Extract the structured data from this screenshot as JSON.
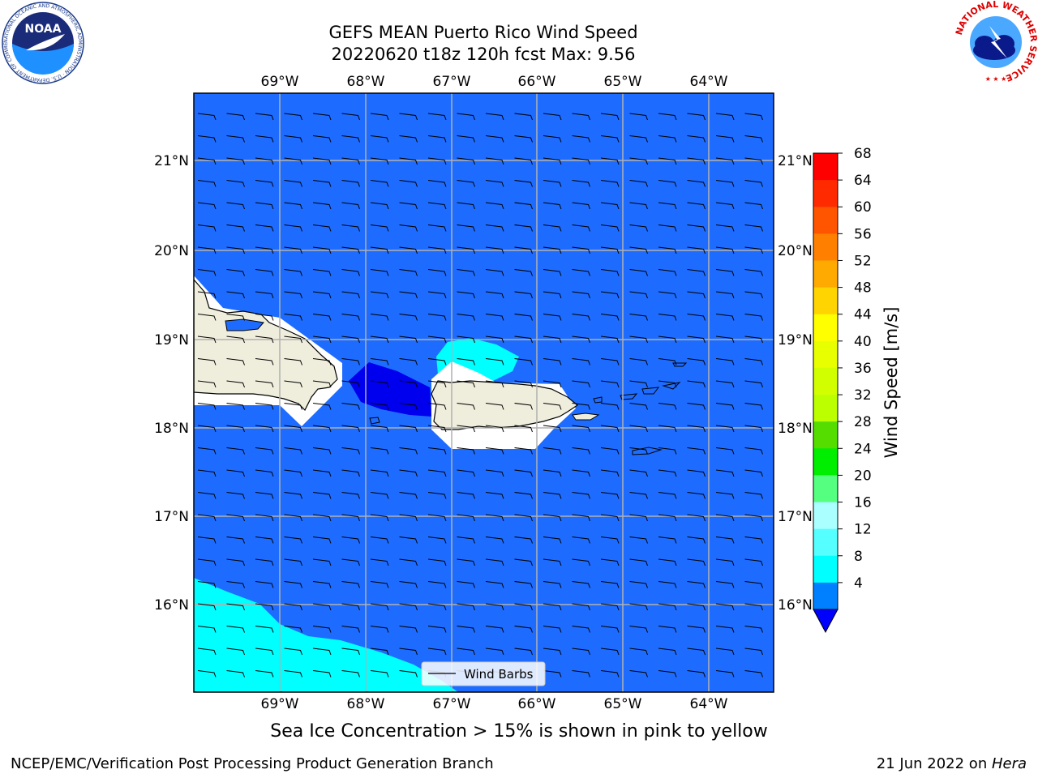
{
  "title_line1": "GEFS MEAN Puerto Rico Wind Speed",
  "title_line2": "20220620 t18z 120h fcst   Max: 9.56",
  "lon_labels": [
    "69°W",
    "68°W",
    "67°W",
    "66°W",
    "65°W",
    "64°W"
  ],
  "lat_labels": [
    "21°N",
    "20°N",
    "19°N",
    "18°N",
    "17°N",
    "16°N"
  ],
  "colorbar": {
    "label": "Wind Speed [m/s]",
    "ticks": [
      "68",
      "64",
      "60",
      "56",
      "52",
      "48",
      "44",
      "40",
      "36",
      "32",
      "28",
      "24",
      "20",
      "16",
      "12",
      "8",
      "4"
    ],
    "colors": [
      "#ff0000",
      "#ff2a00",
      "#ff5500",
      "#ff8000",
      "#ffaa00",
      "#ffd400",
      "#ffff00",
      "#e8ff00",
      "#d2ff00",
      "#bbff00",
      "#55dd00",
      "#00ee00",
      "#55ff80",
      "#aaffff",
      "#55ffff",
      "#00ffff",
      "#0080ff"
    ],
    "under_color": "#0000ff"
  },
  "legend_label": "Wind Barbs",
  "caption": "Sea Ice Concentration > 15% is shown in pink to yellow",
  "footer_left": "NCEP/EMC/Verification Post Processing Product Generation Branch",
  "footer_right_date": "21 Jun 2022 on ",
  "footer_right_host": "Hera",
  "logos": {
    "noaa": "NOAA",
    "noaa_ring": "NATIONAL OCEANIC AND ATMOSPHERIC ADMINISTRATION · U.S. DEPARTMENT OF COMMERCE",
    "nws_ring": "NATIONAL WEATHER SERVICE"
  },
  "map_colors": {
    "ocean": "#1e6cff",
    "land": "#efeedd",
    "calm": "#0000ee",
    "band": "#00ffff"
  }
}
